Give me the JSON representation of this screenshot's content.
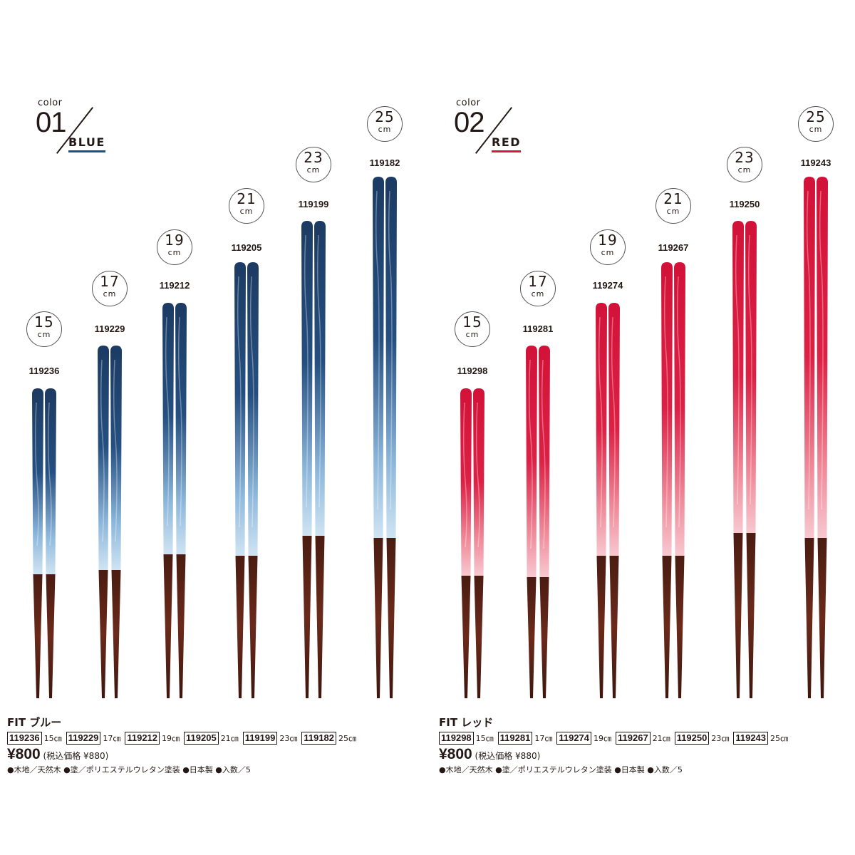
{
  "panels": [
    {
      "color_word": "color",
      "color_number": "01",
      "color_name": "BLUE",
      "accent": "#1b4f8c",
      "items": [
        {
          "size": "15",
          "unit": "cm",
          "code": "119236"
        },
        {
          "size": "17",
          "unit": "cm",
          "code": "119229"
        },
        {
          "size": "19",
          "unit": "cm",
          "code": "119212"
        },
        {
          "size": "21",
          "unit": "cm",
          "code": "119205"
        },
        {
          "size": "23",
          "unit": "cm",
          "code": "119199"
        },
        {
          "size": "25",
          "unit": "cm",
          "code": "119182"
        }
      ],
      "product_title": "FIT ブルー",
      "table": [
        {
          "code": "119236",
          "size": "15㎝"
        },
        {
          "code": "119229",
          "size": "17㎝"
        },
        {
          "code": "119212",
          "size": "19㎝"
        },
        {
          "code": "119205",
          "size": "21㎝"
        },
        {
          "code": "119199",
          "size": "23㎝"
        },
        {
          "code": "119182",
          "size": "25㎝"
        }
      ],
      "price": "¥800",
      "price_tax": "(税込価格 ¥880)",
      "notes": "●木地／天然木 ●塗／ポリエステルウレタン塗装 ●日本製 ●入数／5"
    },
    {
      "color_word": "color",
      "color_number": "02",
      "color_name": "RED",
      "accent": "#d6193a",
      "items": [
        {
          "size": "15",
          "unit": "cm",
          "code": "119298"
        },
        {
          "size": "17",
          "unit": "cm",
          "code": "119281"
        },
        {
          "size": "19",
          "unit": "cm",
          "code": "119274"
        },
        {
          "size": "21",
          "unit": "cm",
          "code": "119267"
        },
        {
          "size": "23",
          "unit": "cm",
          "code": "119250"
        },
        {
          "size": "25",
          "unit": "cm",
          "code": "119243"
        }
      ],
      "product_title": "FIT レッド",
      "table": [
        {
          "code": "119298",
          "size": "15㎝"
        },
        {
          "code": "119281",
          "size": "17㎝"
        },
        {
          "code": "119274",
          "size": "19㎝"
        },
        {
          "code": "119267",
          "size": "21㎝"
        },
        {
          "code": "119250",
          "size": "23㎝"
        },
        {
          "code": "119243",
          "size": "25㎝"
        }
      ],
      "price": "¥800",
      "price_tax": "(税込価格 ¥880)",
      "notes": "●木地／天然木 ●塗／ポリエステルウレタン塗装 ●日本製 ●入数／5"
    }
  ],
  "colors": {
    "blue_dark": "#1e3f66",
    "blue_light": "#bcd8ec",
    "red_dark": "#d4143a",
    "red_light": "#f5c3cc",
    "wood": "#5a2417"
  }
}
